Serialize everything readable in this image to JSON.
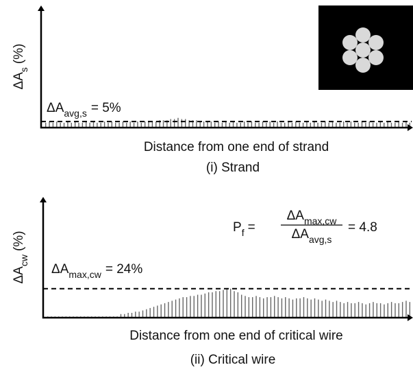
{
  "chart_data": [
    {
      "type": "bar",
      "ylim": [
        0,
        100
      ],
      "y_label": {
        "main": "ΔA",
        "sub": "s",
        "unit": "(%)"
      },
      "x_label": "Distance from one end of strand",
      "caption": "(i) Strand",
      "reference_line": 5,
      "annotation": {
        "main": "ΔA",
        "sub": "avg,s",
        "rest": "= 5%"
      },
      "values": [
        4,
        5,
        4,
        5,
        4,
        4,
        5,
        4,
        5,
        4,
        4,
        5,
        4,
        5,
        4,
        4,
        5,
        4,
        5,
        4,
        4,
        5,
        4,
        5,
        4,
        5,
        4,
        5,
        5,
        5,
        5,
        6,
        6,
        6,
        7,
        7,
        8,
        7,
        7,
        6,
        6,
        6,
        5,
        5,
        5,
        5,
        4,
        5,
        4,
        5,
        4,
        5,
        4,
        4,
        5,
        4,
        5,
        4,
        4,
        5,
        4,
        5,
        4,
        5,
        4,
        4,
        5,
        4,
        5,
        4,
        4,
        5,
        4,
        5,
        4,
        4,
        5,
        4,
        5,
        4,
        4,
        5,
        4,
        5,
        4,
        4,
        5,
        4,
        5,
        4,
        4,
        5,
        4,
        5,
        4,
        4,
        5,
        4,
        5,
        4
      ]
    },
    {
      "type": "bar",
      "ylim": [
        0,
        100
      ],
      "y_label": {
        "main": "ΔA",
        "sub": "cw",
        "unit": "(%)"
      },
      "x_label": "Distance from one end of critical wire",
      "caption": "(ii) Critical wire",
      "reference_line": 24,
      "annotation": {
        "main": "ΔA",
        "sub": "max,cw",
        "rest": "= 24%"
      },
      "formula": {
        "lhs": "P",
        "lhs_sub": "f",
        "equals": "=",
        "num": "ΔA",
        "num_sub": "max,cw",
        "den": "ΔA",
        "den_sub": "avg,s",
        "result": "= 4.8"
      },
      "values": [
        1,
        1,
        1,
        1,
        1,
        1,
        1,
        1,
        1,
        1,
        1,
        1,
        1,
        1,
        1,
        1,
        1,
        1,
        1,
        1,
        3,
        3,
        4,
        4,
        5,
        5,
        6,
        7,
        8,
        9,
        10,
        11,
        12,
        13,
        14,
        15,
        16,
        17,
        17,
        18,
        18,
        19,
        19,
        20,
        21,
        21,
        22,
        22,
        23,
        24,
        24,
        22,
        21,
        19,
        18,
        17,
        17,
        18,
        17,
        16,
        17,
        17,
        18,
        17,
        16,
        17,
        16,
        15,
        16,
        16,
        17,
        16,
        15,
        16,
        15,
        14,
        15,
        14,
        13,
        14,
        13,
        12,
        13,
        12,
        12,
        13,
        12,
        11,
        12,
        13,
        12,
        12,
        11,
        12,
        13,
        12,
        12,
        13,
        14,
        13
      ]
    }
  ]
}
